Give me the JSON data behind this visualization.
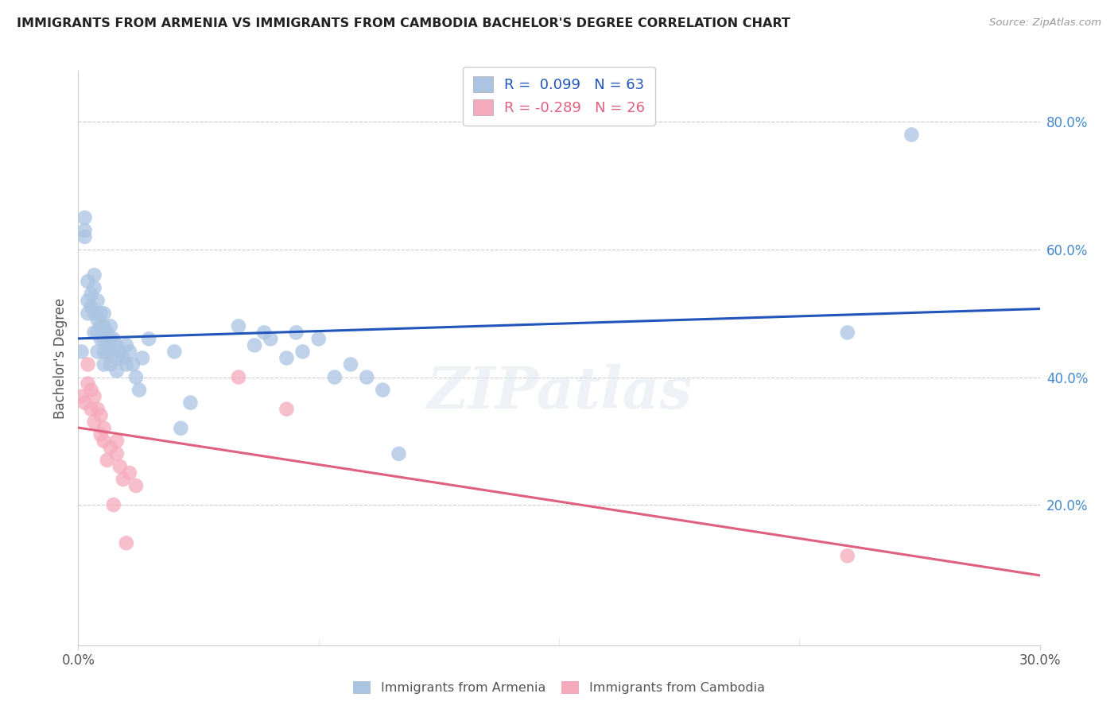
{
  "title": "IMMIGRANTS FROM ARMENIA VS IMMIGRANTS FROM CAMBODIA BACHELOR'S DEGREE CORRELATION CHART",
  "source": "Source: ZipAtlas.com",
  "ylabel": "Bachelor's Degree",
  "ylabel_right_ticks": [
    "80.0%",
    "60.0%",
    "40.0%",
    "20.0%"
  ],
  "ylabel_right_vals": [
    0.8,
    0.6,
    0.4,
    0.2
  ],
  "xmin": 0.0,
  "xmax": 0.3,
  "ymin": -0.02,
  "ymax": 0.88,
  "armenia_color": "#aac4e2",
  "cambodia_color": "#f5aabc",
  "armenia_line_color": "#2255bb",
  "cambodia_line_color": "#e06080",
  "legend_r_armenia": "R =  0.099",
  "legend_n_armenia": "N = 63",
  "legend_r_cambodia": "R = -0.289",
  "legend_n_cambodia": "N = 26",
  "armenia_x": [
    0.001,
    0.002,
    0.002,
    0.002,
    0.003,
    0.003,
    0.003,
    0.004,
    0.004,
    0.005,
    0.005,
    0.005,
    0.005,
    0.006,
    0.006,
    0.006,
    0.006,
    0.007,
    0.007,
    0.007,
    0.008,
    0.008,
    0.008,
    0.008,
    0.008,
    0.009,
    0.009,
    0.01,
    0.01,
    0.01,
    0.01,
    0.011,
    0.012,
    0.012,
    0.012,
    0.013,
    0.014,
    0.015,
    0.015,
    0.016,
    0.017,
    0.018,
    0.019,
    0.02,
    0.022,
    0.03,
    0.032,
    0.035,
    0.05,
    0.055,
    0.058,
    0.06,
    0.065,
    0.068,
    0.07,
    0.075,
    0.08,
    0.085,
    0.09,
    0.095,
    0.1,
    0.24,
    0.26
  ],
  "armenia_y": [
    0.44,
    0.65,
    0.62,
    0.63,
    0.55,
    0.52,
    0.5,
    0.53,
    0.51,
    0.56,
    0.54,
    0.5,
    0.47,
    0.52,
    0.49,
    0.47,
    0.44,
    0.5,
    0.48,
    0.46,
    0.5,
    0.48,
    0.46,
    0.44,
    0.42,
    0.47,
    0.44,
    0.48,
    0.46,
    0.44,
    0.42,
    0.46,
    0.45,
    0.43,
    0.41,
    0.44,
    0.43,
    0.45,
    0.42,
    0.44,
    0.42,
    0.4,
    0.38,
    0.43,
    0.46,
    0.44,
    0.32,
    0.36,
    0.48,
    0.45,
    0.47,
    0.46,
    0.43,
    0.47,
    0.44,
    0.46,
    0.4,
    0.42,
    0.4,
    0.38,
    0.28,
    0.47,
    0.78
  ],
  "cambodia_x": [
    0.001,
    0.002,
    0.003,
    0.003,
    0.004,
    0.004,
    0.005,
    0.005,
    0.006,
    0.007,
    0.007,
    0.008,
    0.008,
    0.009,
    0.01,
    0.011,
    0.012,
    0.012,
    0.013,
    0.014,
    0.015,
    0.016,
    0.018,
    0.05,
    0.065,
    0.24
  ],
  "cambodia_y": [
    0.37,
    0.36,
    0.42,
    0.39,
    0.38,
    0.35,
    0.37,
    0.33,
    0.35,
    0.34,
    0.31,
    0.32,
    0.3,
    0.27,
    0.29,
    0.2,
    0.3,
    0.28,
    0.26,
    0.24,
    0.14,
    0.25,
    0.23,
    0.4,
    0.35,
    0.12
  ],
  "grid_color": "#cccccc",
  "background_color": "#ffffff",
  "watermark": "ZIPatlas"
}
